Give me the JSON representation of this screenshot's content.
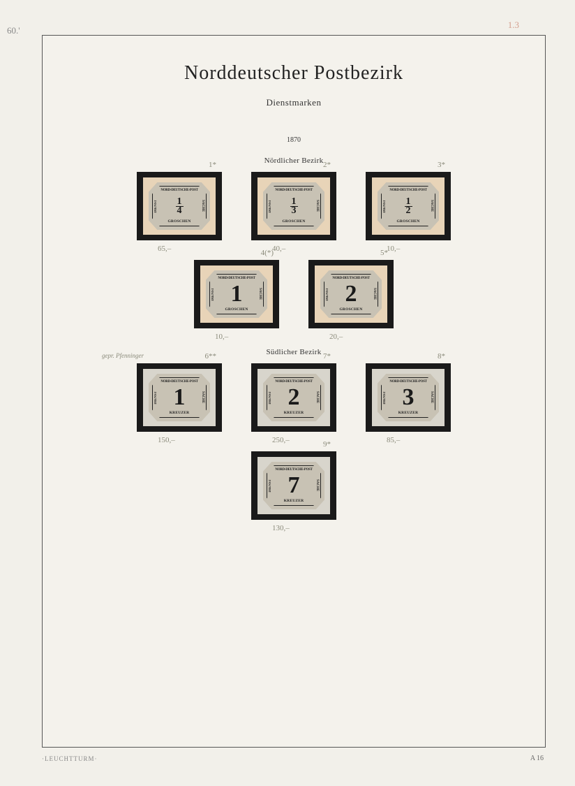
{
  "outer_annotations": {
    "top_left": "60.'",
    "top_right_faint": "1.3"
  },
  "page": {
    "title": "Norddeutscher Postbezirk",
    "subtitle": "Dienstmarken",
    "year": "1870",
    "section1_label": "Nördlicher Bezirk",
    "section2_label": "Südlicher Bezirk"
  },
  "stamp_common": {
    "top_text": "NORD-DEUTSCHE-POST",
    "left_text": "DIENST",
    "right_text": "SACHE"
  },
  "section1": {
    "currency": "GROSCHEN",
    "row1": [
      {
        "value_num": "1",
        "value_den": "4",
        "ann_top": "1*",
        "ann_bottom": "65,–",
        "bg": "buff"
      },
      {
        "value_num": "1",
        "value_den": "3",
        "ann_top": "2*",
        "ann_bottom": "40,–",
        "bg": "buff"
      },
      {
        "value_num": "1",
        "value_den": "2",
        "ann_top": "3*",
        "ann_bottom": "10,–",
        "bg": "buff"
      }
    ],
    "row2": [
      {
        "value": "1",
        "ann_top": "4(*)",
        "ann_bottom": "10,–",
        "bg": "buff"
      },
      {
        "value": "2",
        "ann_top": "5*",
        "ann_bottom": "20,–",
        "bg": "buff"
      }
    ]
  },
  "section2": {
    "currency": "KREUZER",
    "row1": [
      {
        "value": "1",
        "ann_top": "6**",
        "ann_bottom": "150,–",
        "ann_extra": "gepr. Pfenninger",
        "bg": "gray"
      },
      {
        "value": "2",
        "ann_top": "7*",
        "ann_bottom": "250,–",
        "bg": "gray"
      },
      {
        "value": "3",
        "ann_top": "8*",
        "ann_bottom": "85,–",
        "bg": "gray"
      }
    ],
    "row2": [
      {
        "value": "7",
        "ann_top": "9*",
        "ann_bottom": "130,–",
        "bg": "gray"
      }
    ]
  },
  "footer": {
    "left": "·LEUCHTTURM·",
    "right": "A 16"
  }
}
